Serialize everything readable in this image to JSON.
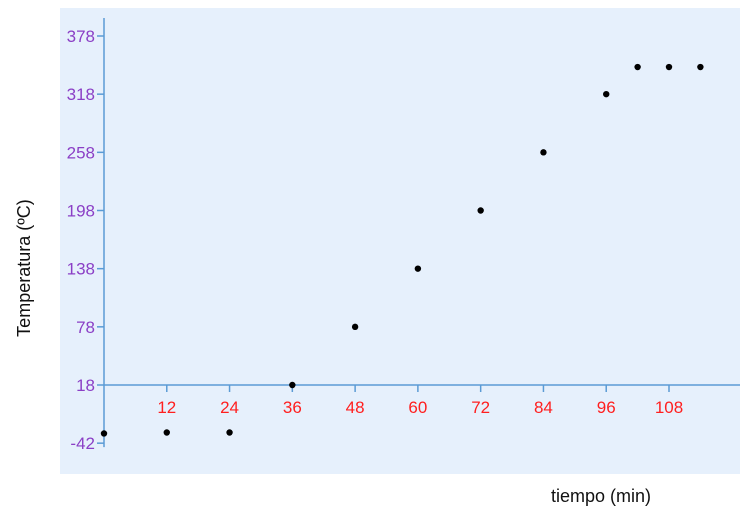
{
  "chart_data": {
    "type": "scatter",
    "xlabel": "tiempo (min)",
    "ylabel": "Temperatura (ºC)",
    "x_ticks": [
      12,
      24,
      36,
      48,
      60,
      72,
      84,
      96,
      108
    ],
    "y_ticks": [
      -42,
      18,
      78,
      138,
      198,
      258,
      318,
      378
    ],
    "xlim": [
      0,
      114
    ],
    "ylim": [
      -42,
      378
    ],
    "grid": false,
    "colors": {
      "plot_background": "#e6f0fc",
      "axis": "#5b9bd5",
      "y_tick_labels": "#8b3fc6",
      "x_tick_labels": "#ff1f1f",
      "points": "#000000"
    },
    "x": [
      0,
      12,
      24,
      36,
      48,
      60,
      72,
      84,
      96,
      102,
      108,
      114
    ],
    "y": [
      -32,
      -31,
      -31,
      18,
      78,
      138,
      198,
      258,
      318,
      346,
      346,
      346
    ]
  }
}
